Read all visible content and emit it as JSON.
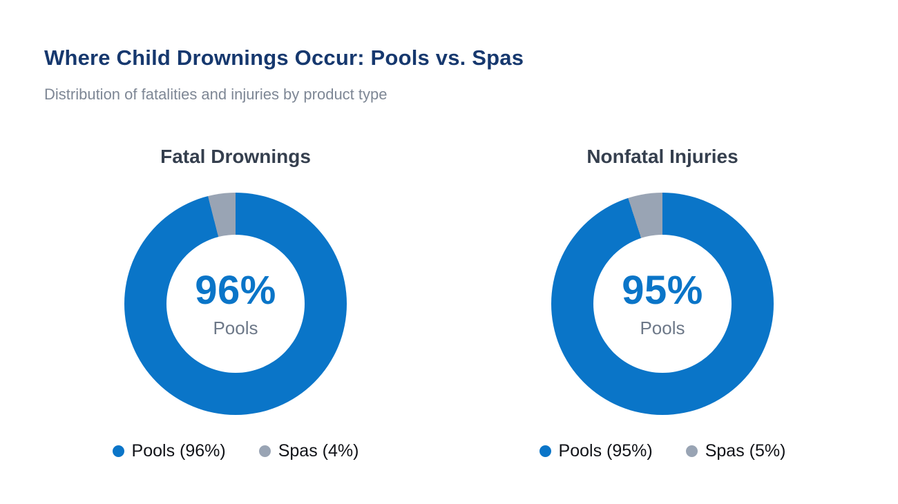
{
  "page": {
    "title": "Where Child Drownings Occur: Pools vs. Spas",
    "subtitle": "Distribution of fatalities and injuries by product type"
  },
  "colors": {
    "pools": "#0a75c8",
    "spas": "#99a4b4",
    "title": "#16386e",
    "chart_title": "#353f4e",
    "subtitle": "#7e8795",
    "center_value": "#0a75c8",
    "center_label": "#6d7888",
    "legend_text": "#111318"
  },
  "chart_data": [
    {
      "type": "pie",
      "title": "Fatal Drownings",
      "categories": [
        "Pools",
        "Spas"
      ],
      "values": [
        96,
        4
      ],
      "center_value": "96%",
      "center_label": "Pools",
      "legend": [
        "Pools (96%)",
        "Spas (4%)"
      ],
      "legend_position": "bottom"
    },
    {
      "type": "pie",
      "title": "Nonfatal Injuries",
      "categories": [
        "Pools",
        "Spas"
      ],
      "values": [
        95,
        5
      ],
      "center_value": "95%",
      "center_label": "Pools",
      "legend": [
        "Pools (95%)",
        "Spas (5%)"
      ],
      "legend_position": "bottom"
    }
  ]
}
